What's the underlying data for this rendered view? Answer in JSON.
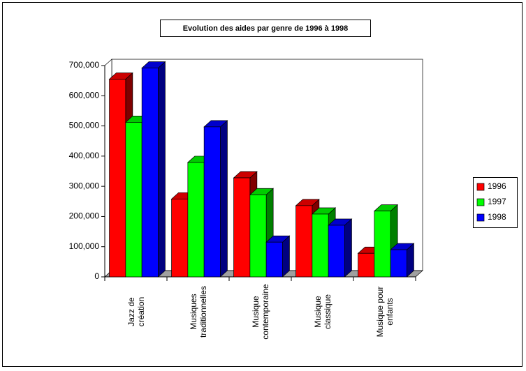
{
  "chart_data": {
    "type": "bar3d",
    "title": "Evolution des aides par genre de 1996 à 1998",
    "categories": [
      "Jazz de création",
      "Musiques traditionnelles",
      "Musique contemporaine",
      "Musique classique",
      "Musique pour enfants"
    ],
    "series": [
      {
        "name": "1996",
        "color": "#ff0000",
        "values": [
          655000,
          258000,
          328000,
          236000,
          78000
        ]
      },
      {
        "name": "1997",
        "color": "#00ff00",
        "values": [
          512000,
          379000,
          272000,
          208000,
          218000
        ]
      },
      {
        "name": "1998",
        "color": "#0000ff",
        "values": [
          692000,
          497000,
          115000,
          171000,
          90000
        ]
      }
    ],
    "ylim": [
      0,
      700000
    ],
    "yticks": [
      0,
      {
        "value": 100000,
        "label": "100,000"
      },
      {
        "value": 200000,
        "label": "200,000"
      },
      {
        "value": 300000,
        "label": "300,000"
      },
      {
        "value": 400000,
        "label": "400,000"
      },
      {
        "value": 500000,
        "label": "500,000"
      },
      {
        "value": 600000,
        "label": "600,000"
      },
      {
        "value": 700000,
        "label": "700,000"
      }
    ],
    "legend": "right"
  }
}
